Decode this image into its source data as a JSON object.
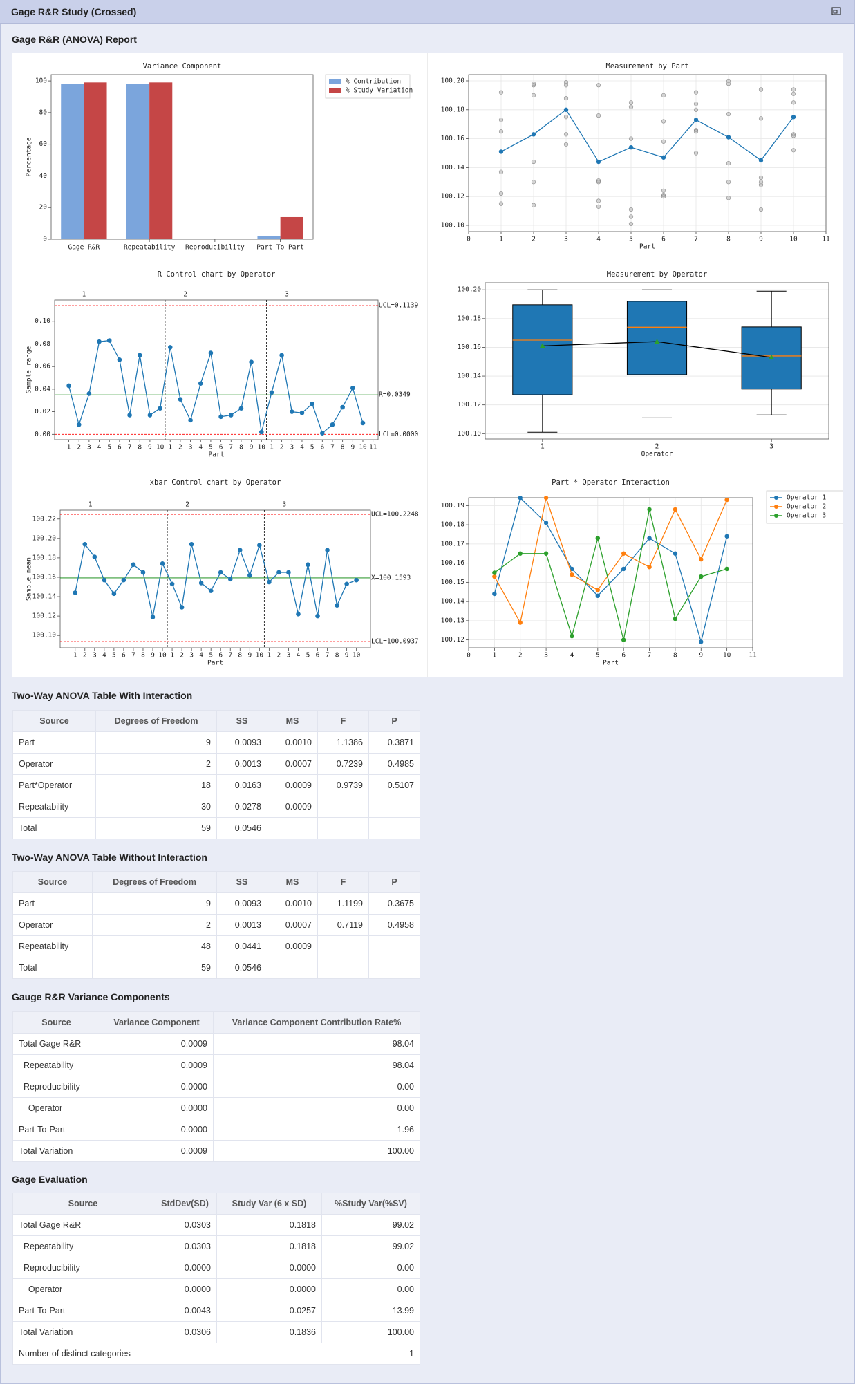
{
  "header": {
    "title": "Gage R&R Study (Crossed)"
  },
  "report": {
    "title": "Gage R&R (ANOVA) Report"
  },
  "chart_data": [
    {
      "type": "grouped-bar",
      "title": "Variance Component",
      "ylabel": "Percentage",
      "categories": [
        "Gage R&R",
        "Repeatability",
        "Reproducibility",
        "Part-To-Part"
      ],
      "series": [
        {
          "name": "% Contribution",
          "color": "#7ba5dc",
          "values": [
            98.04,
            98.04,
            0,
            1.96
          ]
        },
        {
          "name": "% Study Variation",
          "color": "#c54646",
          "values": [
            99.02,
            99.02,
            0,
            13.99
          ]
        }
      ],
      "ylim": [
        0,
        103.97
      ],
      "yticks": [
        0,
        20,
        40,
        60,
        80,
        100
      ],
      "grid": false,
      "legend": "outside-right"
    },
    {
      "type": "scatter-line",
      "title": "Measurement by Part",
      "xlabel": "Part",
      "xlim": [
        0,
        11
      ],
      "xticks": [
        0,
        1,
        2,
        3,
        4,
        5,
        6,
        7,
        8,
        9,
        10,
        11
      ],
      "ylim": [
        100.0957,
        100.2043
      ],
      "yticks": [
        {
          "value": 100.1,
          "label": "100.10"
        },
        100.12,
        100.14,
        100.16,
        100.18,
        {
          "value": 100.2,
          "label": "100.20"
        }
      ],
      "grid": true,
      "series": [
        {
          "style": "scatter",
          "color": "#b0b0b0",
          "x": [
            1,
            1,
            1,
            1,
            1,
            1,
            2,
            2,
            2,
            2,
            2,
            2,
            3,
            3,
            3,
            3,
            3,
            3,
            4,
            4,
            4,
            4,
            4,
            4,
            5,
            5,
            5,
            5,
            5,
            5,
            6,
            6,
            6,
            6,
            6,
            6,
            7,
            7,
            7,
            7,
            7,
            7,
            8,
            8,
            8,
            8,
            8,
            8,
            9,
            9,
            9,
            9,
            9,
            9,
            10,
            10,
            10,
            10,
            10,
            10
          ],
          "values": [
            100.192,
            100.173,
            100.165,
            100.137,
            100.122,
            100.115,
            100.198,
            100.197,
            100.19,
            100.144,
            100.13,
            100.114,
            100.199,
            100.197,
            100.188,
            100.175,
            100.163,
            100.156,
            100.197,
            100.176,
            100.131,
            100.13,
            100.117,
            100.113,
            100.185,
            100.182,
            100.16,
            100.111,
            100.106,
            100.101,
            100.19,
            100.172,
            100.158,
            100.124,
            100.121,
            100.12,
            100.192,
            100.184,
            100.18,
            100.166,
            100.165,
            100.15,
            100.2,
            100.198,
            100.177,
            100.143,
            100.13,
            100.119,
            100.194,
            100.174,
            100.133,
            100.13,
            100.128,
            100.111,
            100.194,
            100.191,
            100.185,
            100.163,
            100.162,
            100.152
          ]
        },
        {
          "style": "line",
          "color": "#1f77b4",
          "x": [
            1,
            2,
            3,
            4,
            5,
            6,
            7,
            8,
            9,
            10
          ],
          "values": [
            100.151,
            100.163,
            100.18,
            100.144,
            100.154,
            100.147,
            100.173,
            100.161,
            100.145,
            100.175
          ]
        }
      ]
    },
    {
      "type": "control",
      "title": "R Control chart by Operator",
      "xlabel": "Part",
      "ylabel": "Sample range",
      "groups": [
        "1",
        "2",
        "3"
      ],
      "color": "#1f77b4",
      "x": [
        1,
        2,
        3,
        4,
        5,
        6,
        7,
        8,
        9,
        10,
        11,
        12,
        13,
        14,
        15,
        16,
        17,
        18,
        19,
        20,
        21,
        22,
        23,
        24,
        25,
        26,
        27,
        28,
        29,
        30
      ],
      "values": [
        0.043,
        0.0086,
        0.036,
        0.082,
        0.083,
        0.066,
        0.017,
        0.07,
        0.017,
        0.023,
        0.077,
        0.031,
        0.0125,
        0.045,
        0.072,
        0.0156,
        0.017,
        0.023,
        0.064,
        0.002,
        0.037,
        0.07,
        0.02,
        0.019,
        0.027,
        0.001,
        0.0086,
        0.024,
        0.041,
        0.01
      ],
      "xlim": [
        -0.4,
        31.5
      ],
      "xticks": [
        1,
        2,
        3,
        4,
        5,
        6,
        7,
        8,
        9,
        10,
        {
          "value": 11,
          "label": "1"
        },
        {
          "value": 12,
          "label": "2"
        },
        {
          "value": 13,
          "label": "3"
        },
        {
          "value": 14,
          "label": "4"
        },
        {
          "value": 15,
          "label": "5"
        },
        {
          "value": 16,
          "label": "6"
        },
        {
          "value": 17,
          "label": "7"
        },
        {
          "value": 18,
          "label": "8"
        },
        {
          "value": 19,
          "label": "9"
        },
        {
          "value": 20,
          "label": "10"
        },
        {
          "value": 21,
          "label": "1"
        },
        {
          "value": 22,
          "label": "2"
        },
        {
          "value": 23,
          "label": "3"
        },
        {
          "value": 24,
          "label": "4"
        },
        {
          "value": 25,
          "label": "5"
        },
        {
          "value": 26,
          "label": "6"
        },
        {
          "value": 27,
          "label": "7"
        },
        {
          "value": 28,
          "label": "8"
        },
        {
          "value": 29,
          "label": "9"
        },
        {
          "value": 30,
          "label": "10"
        },
        {
          "value": 31,
          "label": "11"
        }
      ],
      "ylim": [
        -0.0047,
        0.1188
      ],
      "yticks": [
        {
          "value": 0,
          "label": "0.00"
        },
        0.02,
        0.04,
        0.06,
        0.08,
        {
          "value": 0.1,
          "label": "0.10"
        }
      ],
      "grid": false,
      "limits": [
        {
          "value": 0.1139,
          "label": "UCL=0.1139",
          "color": "#ff0000",
          "dashed": true
        },
        {
          "value": 0.0349,
          "label": "R=0.0349",
          "color": "#008000",
          "dashed": false
        },
        {
          "value": 0,
          "label": "LCL=0.0000",
          "color": "#ff0000",
          "dashed": true
        }
      ]
    },
    {
      "type": "box",
      "title": "Measurement by Operator",
      "xlabel": "Operator",
      "categories": [
        "1",
        "2",
        "3"
      ],
      "low": [
        100.101,
        100.111,
        100.113
      ],
      "q1": [
        100.127,
        100.141,
        100.131
      ],
      "median": [
        100.165,
        100.174,
        100.154
      ],
      "q3": [
        100.1896,
        100.192,
        100.1742
      ],
      "high": [
        100.2,
        100.2,
        100.199
      ],
      "means": [
        100.161,
        100.164,
        100.153
      ],
      "color": "#1f77b4",
      "median_color": "#ff7f0e",
      "mean_color": "#2ca02c",
      "line_color": "#000000",
      "ylim": [
        100.0963,
        100.2049
      ],
      "yticks": [
        {
          "value": 100.1,
          "label": "100.10"
        },
        100.12,
        100.14,
        100.16,
        100.18,
        {
          "value": 100.2,
          "label": "100.20"
        }
      ],
      "grid": true
    },
    {
      "type": "control",
      "title": "xbar Control chart by Operator",
      "xlabel": "Part",
      "ylabel": "Sample mean",
      "groups": [
        "1",
        "2",
        "3"
      ],
      "color": "#1f77b4",
      "x": [
        1,
        2,
        3,
        4,
        5,
        6,
        7,
        8,
        9,
        10,
        11,
        12,
        13,
        14,
        15,
        16,
        17,
        18,
        19,
        20,
        21,
        22,
        23,
        24,
        25,
        26,
        27,
        28,
        29,
        30
      ],
      "values": [
        100.144,
        100.194,
        100.181,
        100.157,
        100.143,
        100.157,
        100.173,
        100.165,
        100.119,
        100.174,
        100.153,
        100.129,
        100.194,
        100.154,
        100.146,
        100.165,
        100.158,
        100.188,
        100.162,
        100.193,
        100.155,
        100.165,
        100.165,
        100.122,
        100.173,
        100.12,
        100.188,
        100.131,
        100.153,
        100.157
      ],
      "xlim": [
        -0.55,
        31.45
      ],
      "xticks": [
        1,
        2,
        3,
        4,
        5,
        6,
        7,
        8,
        9,
        10,
        {
          "value": 11,
          "label": "1"
        },
        {
          "value": 12,
          "label": "2"
        },
        {
          "value": 13,
          "label": "3"
        },
        {
          "value": 14,
          "label": "4"
        },
        {
          "value": 15,
          "label": "5"
        },
        {
          "value": 16,
          "label": "6"
        },
        {
          "value": 17,
          "label": "7"
        },
        {
          "value": 18,
          "label": "8"
        },
        {
          "value": 19,
          "label": "9"
        },
        {
          "value": 20,
          "label": "10"
        },
        {
          "value": 21,
          "label": "1"
        },
        {
          "value": 22,
          "label": "2"
        },
        {
          "value": 23,
          "label": "3"
        },
        {
          "value": 24,
          "label": "4"
        },
        {
          "value": 25,
          "label": "5"
        },
        {
          "value": 26,
          "label": "6"
        },
        {
          "value": 27,
          "label": "7"
        },
        {
          "value": 28,
          "label": "8"
        },
        {
          "value": 29,
          "label": "9"
        },
        {
          "value": 30,
          "label": "10"
        }
      ],
      "ylim": [
        100.0873,
        100.2291
      ],
      "yticks": [
        {
          "value": 100.1,
          "label": "100.10"
        },
        100.12,
        100.14,
        100.16,
        100.18,
        {
          "value": 100.2,
          "label": "100.20"
        },
        100.22
      ],
      "grid": false,
      "limits": [
        {
          "value": 100.2248,
          "label": "UCL=100.2248",
          "color": "#ff0000",
          "dashed": true
        },
        {
          "value": 100.1593,
          "label": "X=100.1593",
          "color": "#008000",
          "dashed": false
        },
        {
          "value": 100.0937,
          "label": "LCL=100.0937",
          "color": "#ff0000",
          "dashed": true
        }
      ]
    },
    {
      "type": "line",
      "title": "Part * Operator Interaction",
      "xlabel": "Part",
      "x": [
        1,
        2,
        3,
        4,
        5,
        6,
        7,
        8,
        9,
        10
      ],
      "xlim": [
        0,
        11
      ],
      "xticks": [
        0,
        1,
        2,
        3,
        4,
        5,
        6,
        7,
        8,
        9,
        10,
        11
      ],
      "ylim": [
        100.1159,
        100.1941
      ],
      "yticks": [
        100.12,
        100.13,
        100.14,
        100.15,
        100.16,
        100.17,
        100.18,
        100.19
      ],
      "grid": true,
      "legend": "outside-right",
      "series": [
        {
          "name": "Operator 1",
          "color": "#1f77b4",
          "values": [
            100.144,
            100.194,
            100.181,
            100.157,
            100.143,
            100.157,
            100.173,
            100.165,
            100.119,
            100.174
          ]
        },
        {
          "name": "Operator 2",
          "color": "#ff7f0e",
          "values": [
            100.153,
            100.129,
            100.194,
            100.154,
            100.146,
            100.165,
            100.158,
            100.188,
            100.162,
            100.193
          ]
        },
        {
          "name": "Operator 3",
          "color": "#2ca02c",
          "values": [
            100.155,
            100.165,
            100.165,
            100.122,
            100.173,
            100.12,
            100.188,
            100.131,
            100.153,
            100.157
          ]
        }
      ]
    }
  ],
  "tables": [
    {
      "title": "Two-Way ANOVA Table With Interaction",
      "columns": [
        "Source",
        "Degrees of Freedom",
        "SS",
        "MS",
        "F",
        "P"
      ],
      "rows": [
        [
          "Part",
          "9",
          "0.0093",
          "0.0010",
          "1.1386",
          "0.3871"
        ],
        [
          "Operator",
          "2",
          "0.0013",
          "0.0007",
          "0.7239",
          "0.4985"
        ],
        [
          "Part*Operator",
          "18",
          "0.0163",
          "0.0009",
          "0.9739",
          "0.5107"
        ],
        [
          "Repeatability",
          "30",
          "0.0278",
          "0.0009",
          null,
          null
        ],
        [
          "Total",
          "59",
          "0.0546",
          null,
          null,
          null
        ]
      ]
    },
    {
      "title": "Two-Way ANOVA Table Without Interaction",
      "columns": [
        "Source",
        "Degrees of Freedom",
        "SS",
        "MS",
        "F",
        "P"
      ],
      "rows": [
        [
          "Part",
          "9",
          "0.0093",
          "0.0010",
          "1.1199",
          "0.3675"
        ],
        [
          "Operator",
          "2",
          "0.0013",
          "0.0007",
          "0.7119",
          "0.4958"
        ],
        [
          "Repeatability",
          "48",
          "0.0441",
          "0.0009",
          null,
          null
        ],
        [
          "Total",
          "59",
          "0.0546",
          null,
          null,
          null
        ]
      ]
    },
    {
      "title": "Gauge R&R Variance Components",
      "columns": [
        "Source",
        "Variance Component",
        "Variance Component Contribution Rate%"
      ],
      "rows": [
        [
          "Total Gage R&R",
          "0.0009",
          "98.04"
        ],
        [
          "  Repeatability",
          "0.0009",
          "98.04"
        ],
        [
          "  Reproducibility",
          "0.0000",
          "0.00"
        ],
        [
          "    Operator",
          "0.0000",
          "0.00"
        ],
        [
          "Part-To-Part",
          "0.0000",
          "1.96"
        ],
        [
          "Total Variation",
          "0.0009",
          "100.00"
        ]
      ]
    },
    {
      "title": "Gage Evaluation",
      "columns": [
        "Source",
        "StdDev(SD)",
        "Study Var (6 x SD)",
        "%Study Var(%SV)"
      ],
      "rows": [
        [
          "Total Gage R&R",
          "0.0303",
          "0.1818",
          "99.02"
        ],
        [
          "  Repeatability",
          "0.0303",
          "0.1818",
          "99.02"
        ],
        [
          "  Reproducibility",
          "0.0000",
          "0.0000",
          "0.00"
        ],
        [
          "    Operator",
          "0.0000",
          "0.0000",
          "0.00"
        ],
        [
          "Part-To-Part",
          "0.0043",
          "0.0257",
          "13.99"
        ],
        [
          "Total Variation",
          "0.0306",
          "0.1836",
          "100.00"
        ],
        [
          "Number of distinct categories",
          "1"
        ]
      ]
    }
  ]
}
